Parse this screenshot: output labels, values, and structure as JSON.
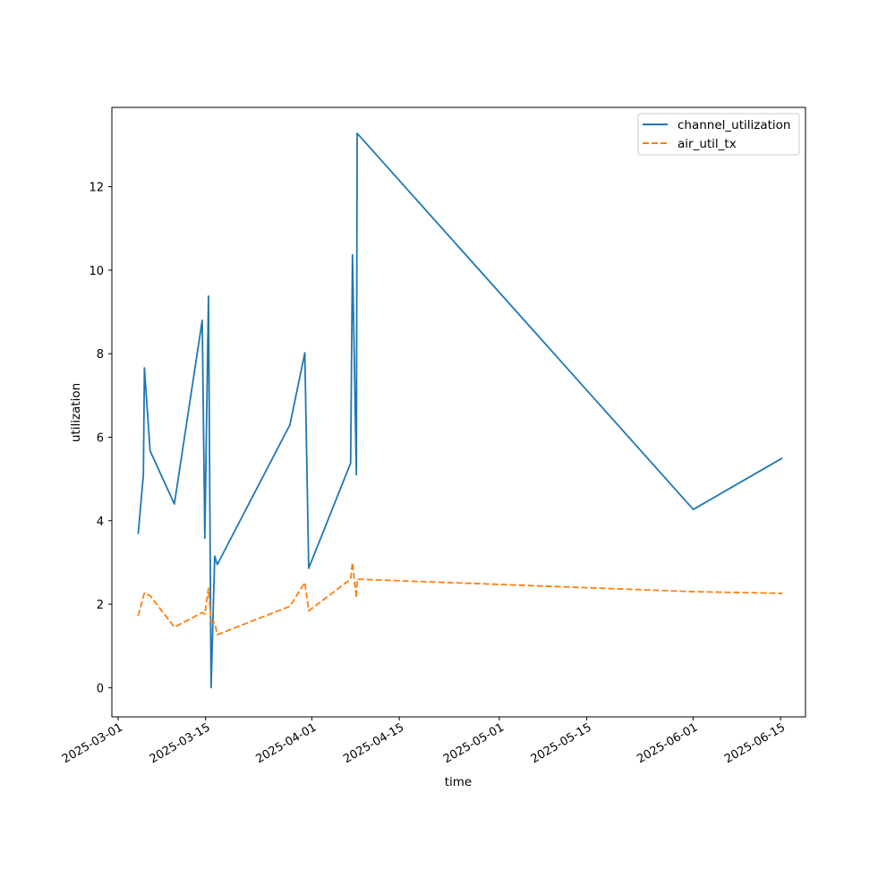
{
  "chart_data": {
    "type": "line",
    "xlabel": "time",
    "ylabel": "utilization",
    "x_axis_type": "date",
    "xlim": [
      "2025-02-28",
      "2025-06-19"
    ],
    "ylim": [
      -0.7,
      13.9
    ],
    "x_ticks": [
      "2025-03-01",
      "2025-03-15",
      "2025-04-01",
      "2025-04-15",
      "2025-05-01",
      "2025-05-15",
      "2025-06-01",
      "2025-06-15"
    ],
    "x_tick_labels": [
      "2025-03-01",
      "2025-03-15",
      "2025-04-01",
      "2025-04-15",
      "2025-05-01",
      "2025-05-15",
      "2025-06-01",
      "2025-06-15"
    ],
    "y_ticks": [
      0,
      2,
      4,
      6,
      8,
      10,
      12
    ],
    "y_tick_labels": [
      "0",
      "2",
      "4",
      "6",
      "8",
      "10",
      "12"
    ],
    "grid": false,
    "legend_position": "top-right",
    "series": [
      {
        "name": "channel_utilization",
        "color": "#1f77b4",
        "line_style": "solid",
        "points": [
          [
            "2025-03-04T05:00",
            3.68
          ],
          [
            "2025-03-05T01:00",
            5.1
          ],
          [
            "2025-03-05T05:00",
            7.66
          ],
          [
            "2025-03-06T03:00",
            5.67
          ],
          [
            "2025-03-10T00:00",
            4.4
          ],
          [
            "2025-03-14T11:00",
            8.8
          ],
          [
            "2025-03-14T21:00",
            3.58
          ],
          [
            "2025-03-15T11:00",
            9.38
          ],
          [
            "2025-03-15T21:00",
            0.0
          ],
          [
            "2025-03-16T11:00",
            3.15
          ],
          [
            "2025-03-16T21:00",
            2.95
          ],
          [
            "2025-03-28T12:00",
            6.3
          ],
          [
            "2025-03-30T21:00",
            8.02
          ],
          [
            "2025-03-31T12:00",
            2.86
          ],
          [
            "2025-04-07T05:00",
            5.38
          ],
          [
            "2025-04-07T12:00",
            10.37
          ],
          [
            "2025-04-08T03:00",
            5.1
          ],
          [
            "2025-04-08T06:00",
            13.28
          ],
          [
            "2025-06-01T01:00",
            4.27
          ],
          [
            "2025-06-15T07:00",
            5.5
          ]
        ]
      },
      {
        "name": "air_util_tx",
        "color": "#ff7f0e",
        "line_style": "dashed",
        "points": [
          [
            "2025-03-04T05:00",
            1.72
          ],
          [
            "2025-03-05T01:00",
            2.18
          ],
          [
            "2025-03-05T05:00",
            2.27
          ],
          [
            "2025-03-06T03:00",
            2.2
          ],
          [
            "2025-03-10T00:00",
            1.45
          ],
          [
            "2025-03-14T11:00",
            1.8
          ],
          [
            "2025-03-14T21:00",
            1.76
          ],
          [
            "2025-03-15T11:00",
            2.38
          ],
          [
            "2025-03-15T21:00",
            1.6
          ],
          [
            "2025-03-16T11:00",
            1.55
          ],
          [
            "2025-03-16T21:00",
            1.27
          ],
          [
            "2025-03-28T12:00",
            1.95
          ],
          [
            "2025-03-30T21:00",
            2.52
          ],
          [
            "2025-03-31T12:00",
            1.84
          ],
          [
            "2025-04-07T05:00",
            2.6
          ],
          [
            "2025-04-07T12:00",
            3.0
          ],
          [
            "2025-04-08T03:00",
            2.15
          ],
          [
            "2025-04-08T06:00",
            2.6
          ],
          [
            "2025-06-01T01:00",
            2.3
          ],
          [
            "2025-06-15T07:00",
            2.26
          ]
        ]
      }
    ]
  }
}
